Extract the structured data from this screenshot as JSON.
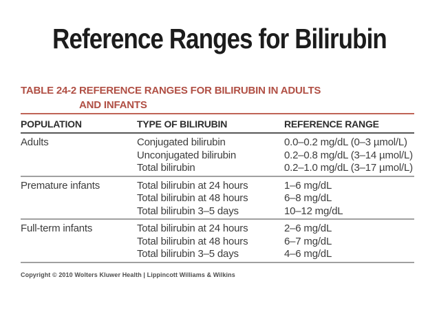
{
  "slide_title": "Reference Ranges for Bilirubin",
  "table": {
    "caption_line1": "TABLE 24-2 REFERENCE RANGES FOR BILIRUBIN IN ADULTS",
    "caption_line2": "AND INFANTS",
    "columns": [
      "POPULATION",
      "TYPE OF BILIRUBIN",
      "REFERENCE RANGE"
    ],
    "sections": [
      {
        "population": "Adults",
        "rows": [
          {
            "type": "Conjugated bilirubin",
            "range": "0.0–0.2 mg/dL (0–3 µmol/L)"
          },
          {
            "type": "Unconjugated bilirubin",
            "range": "0.2–0.8 mg/dL (3–14 µmol/L)"
          },
          {
            "type": "Total bilirubin",
            "range": "0.2–1.0 mg/dL (3–17 µmol/L)"
          }
        ]
      },
      {
        "population": "Premature infants",
        "rows": [
          {
            "type": "Total bilirubin at 24 hours",
            "range": "1–6 mg/dL"
          },
          {
            "type": "Total bilirubin at 48 hours",
            "range": "6–8 mg/dL"
          },
          {
            "type": "Total bilirubin 3–5 days",
            "range": "10–12 mg/dL"
          }
        ]
      },
      {
        "population": "Full-term infants",
        "rows": [
          {
            "type": "Total bilirubin at 24 hours",
            "range": "2–6 mg/dL"
          },
          {
            "type": "Total bilirubin at 48 hours",
            "range": "6–7 mg/dL"
          },
          {
            "type": "Total bilirubin 3–5 days",
            "range": "4–6 mg/dL"
          }
        ]
      }
    ],
    "copyright": "Copyright © 2010 Wolters Kluwer Health | Lippincott Williams & Wilkins"
  },
  "colors": {
    "heading_red": "#b04f44",
    "rule_red": "#bf6355",
    "rule_gray": "#a0a0a0",
    "rule_dark": "#565656"
  }
}
